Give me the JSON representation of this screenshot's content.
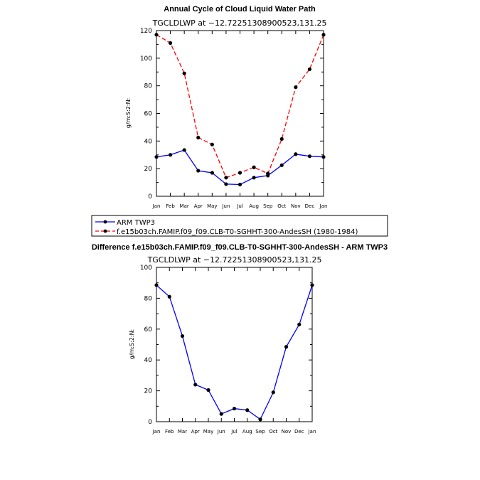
{
  "chart_data": [
    {
      "type": "line",
      "title": "Annual Cycle of Cloud Liquid Water Path",
      "subtitle": "TGCLDLWP at −12.72251308900523,131.25",
      "ylabel": "g/m:S:2:N:",
      "xlabel": "",
      "ylim": [
        0,
        120
      ],
      "yticks": [
        0,
        20,
        40,
        60,
        80,
        100,
        120
      ],
      "categories": [
        "Jan",
        "Feb",
        "Mar",
        "Apr",
        "May",
        "Jun",
        "Jul",
        "Aug",
        "Sep",
        "Oct",
        "Nov",
        "Dec",
        "Jan"
      ],
      "series": [
        {
          "name": "ARM TWP3",
          "color": "#0000ff",
          "dash": "solid",
          "values": [
            28.5,
            30.0,
            33.5,
            18.5,
            17.0,
            8.8,
            8.5,
            13.5,
            15.0,
            22.5,
            30.5,
            29.0,
            28.5
          ]
        },
        {
          "name": "f.e15b03ch.FAMIP.f09_f09.CLB-T0-SGHHT-300-AndesSH (1980-1984)",
          "color": "#ff0000",
          "dash": "dashed",
          "values": [
            117.0,
            111.0,
            89.0,
            42.5,
            37.5,
            13.5,
            17.0,
            21.0,
            16.5,
            41.5,
            79.0,
            92.0,
            117.0
          ]
        }
      ],
      "legend": [
        "ARM TWP3",
        "f.e15b03ch.FAMIP.f09_f09.CLB-T0-SGHHT-300-AndesSH (1980-1984)"
      ]
    },
    {
      "type": "line",
      "title": "Difference f.e15b03ch.FAMIP.f09_f09.CLB-T0-SGHHT-300-AndesSH - ARM TWP3",
      "subtitle": "TGCLDLWP at −12.72251308900523,131.25",
      "ylabel": "g/m:S:2:N:",
      "xlabel": "",
      "ylim": [
        0,
        100
      ],
      "yticks": [
        0,
        20,
        40,
        60,
        80,
        100
      ],
      "categories": [
        "Jan",
        "Feb",
        "Mar",
        "Apr",
        "May",
        "Jun",
        "Jul",
        "Aug",
        "Sep",
        "Oct",
        "Nov",
        "Dec",
        "Jan"
      ],
      "series": [
        {
          "name": "Difference",
          "color": "#0000ff",
          "dash": "solid",
          "values": [
            88.5,
            81.0,
            55.5,
            24.0,
            20.5,
            5.0,
            8.5,
            7.5,
            1.5,
            19.0,
            48.5,
            63.0,
            88.5
          ]
        }
      ]
    }
  ]
}
